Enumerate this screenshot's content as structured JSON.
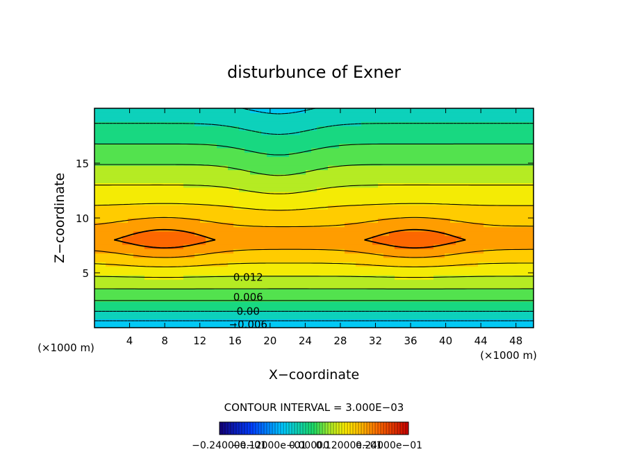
{
  "chart_data": {
    "type": "heatmap",
    "title": "disturbunce of Exner",
    "xlabel": "X−coordinate",
    "ylabel": "Z−coordinate",
    "x_unit_left": "(×1000 m)",
    "x_unit_right": "(×1000 m)",
    "xlim": [
      0,
      50
    ],
    "ylim": [
      0,
      20
    ],
    "x_ticks": [
      4,
      8,
      12,
      16,
      20,
      24,
      28,
      32,
      36,
      40,
      44,
      48
    ],
    "y_ticks": [
      5,
      10,
      15
    ],
    "contour_interval_text": "CONTOUR INTERVAL = 3.000E−03",
    "contour_interval": 0.003,
    "value_range": [
      -0.024,
      0.024
    ],
    "colorbar_labels": [
      "−0.24000e−01",
      "−0.12000e−01",
      "0.00000",
      "0.12000e−01",
      "0.24000e−01"
    ],
    "contour_labels": [
      {
        "text": "0.012",
        "x": 17.5,
        "y": 4.6
      },
      {
        "text": "0.006",
        "x": 17.5,
        "y": 2.8
      },
      {
        "text": "0.00",
        "x": 17.5,
        "y": 1.5
      },
      {
        "text": "−0.006",
        "x": 17.5,
        "y": 0.3
      }
    ],
    "field_description": "value decreases with height above ~8 km and toward the ground; two maxima (~0.016) near x=8 and x=36 at z~8",
    "max_centers": [
      {
        "x": 8,
        "z": 8,
        "value": 0.016
      },
      {
        "x": 36.5,
        "z": 8,
        "value": 0.016
      }
    ],
    "grid": false
  },
  "colors": {
    "low": "#0000ff",
    "zero": "#22dd66",
    "high": "#ff6a00"
  }
}
